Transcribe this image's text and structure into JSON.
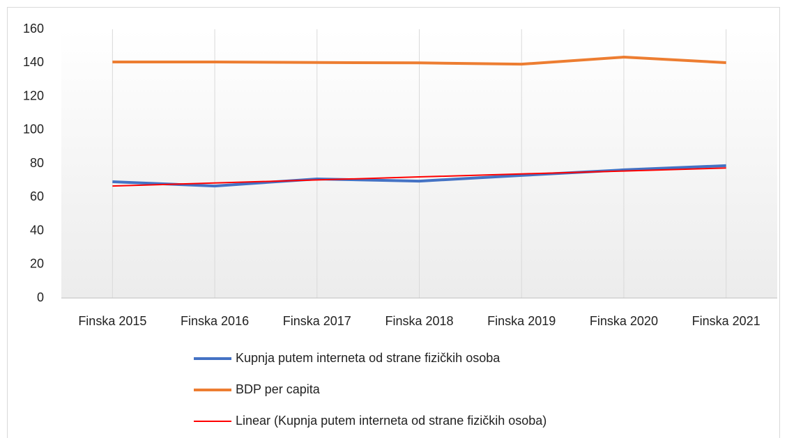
{
  "chart_data": {
    "type": "line",
    "categories": [
      "Finska 2015",
      "Finska 2016",
      "Finska 2017",
      "Finska 2018",
      "Finska 2019",
      "Finska 2020",
      "Finska 2021"
    ],
    "series": [
      {
        "name": "Kupnja putem interneta od strane fizičkih osoba",
        "color": "#4472c4",
        "values": [
          69.2,
          66.7,
          70.9,
          69.6,
          73,
          76.3,
          78.8
        ]
      },
      {
        "name": "BDP per capita",
        "color": "#ed7d31",
        "values": [
          140.5,
          140.5,
          140.2,
          140,
          139.2,
          143.4,
          140.1
        ]
      },
      {
        "name": "Linear (Kupnja putem interneta od strane fizičkih osoba)",
        "color": "#ff0000",
        "values": [
          66.7,
          68.5,
          70.3,
          72.1,
          73.9,
          75.6,
          77.4
        ]
      }
    ],
    "ylim": [
      0,
      160
    ],
    "yticks": [
      0,
      20,
      40,
      60,
      80,
      100,
      120,
      140,
      160
    ],
    "grid": true
  }
}
